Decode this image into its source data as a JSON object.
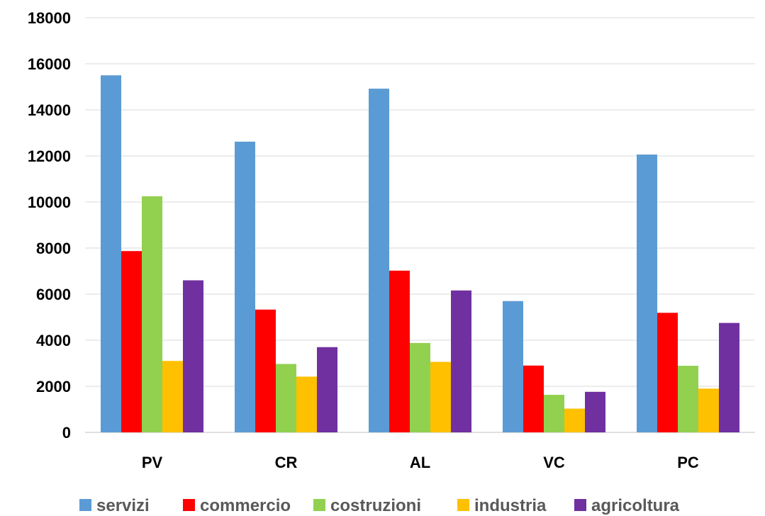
{
  "chart_data": {
    "type": "bar",
    "categories": [
      "PV",
      "CR",
      "AL",
      "VC",
      "PC"
    ],
    "series": [
      {
        "name": "servizi",
        "color": "#5B9BD5",
        "values": [
          15500,
          12620,
          14920,
          5700,
          12060
        ]
      },
      {
        "name": "commercio",
        "color": "#FF0000",
        "values": [
          7870,
          5330,
          7020,
          2900,
          5190
        ]
      },
      {
        "name": "costruzioni",
        "color": "#92D050",
        "values": [
          10250,
          2970,
          3880,
          1630,
          2890
        ]
      },
      {
        "name": "industria",
        "color": "#FFC000",
        "values": [
          3100,
          2420,
          3060,
          1030,
          1900
        ]
      },
      {
        "name": "agricoltura",
        "color": "#7030A0",
        "values": [
          6600,
          3700,
          6160,
          1760,
          4750
        ]
      }
    ],
    "ylim": [
      0,
      18000
    ],
    "yticks": [
      "0",
      "2000",
      "4000",
      "6000",
      "8000",
      "10000",
      "12000",
      "14000",
      "16000",
      "18000"
    ],
    "grid": true,
    "legend_position": "bottom"
  }
}
